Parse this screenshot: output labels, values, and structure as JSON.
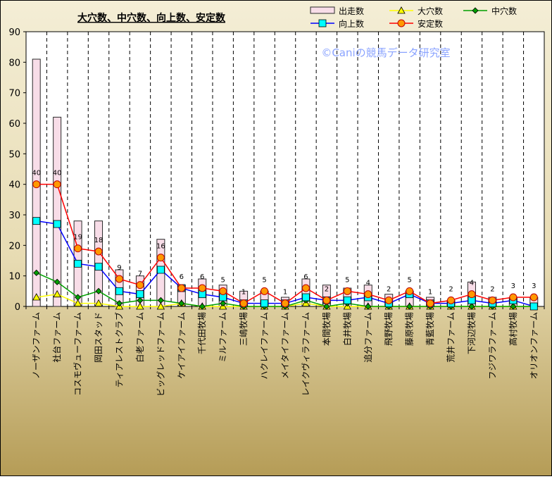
{
  "chart_data": {
    "type": "bar",
    "title": "大穴数、中穴数、向上数、安定数",
    "watermark": "©Caniの競馬データ研究室",
    "categories": [
      "ノーザンファーム",
      "社台ファーム",
      "コスモヴューファーム",
      "岡田スタッド",
      "ティアレストクラブ",
      "白老ファーム",
      "ビッグレッドファーム",
      "ケイアイファーム",
      "千代田牧場",
      "ミルファーム",
      "三嶋牧場",
      "ハクレイファーム",
      "メイタイファーム",
      "レイクヴィラファーム",
      "本間牧場",
      "白井牧場",
      "追分ファーム",
      "飛野牧場",
      "藤原牧場",
      "青藍牧場",
      "荒井ファーム",
      "下河辺牧場",
      "フジワラファーム",
      "高村牧場",
      "オリオンファーム"
    ],
    "ylim": [
      0,
      90
    ],
    "yticks": [
      0,
      10,
      20,
      30,
      40,
      50,
      60,
      70,
      80,
      90
    ],
    "grid": "horizontal-none, vertical-dashed",
    "legend_position": "top-right",
    "colors": {
      "bar_fill": "#f8dde8",
      "bar_stroke": "#2a2a2a",
      "daiana": "#ffff00",
      "chuana": "#00a000",
      "kojo_line": "#0000ff",
      "kojo_marker": "#00ffff",
      "antei_line": "#ff0000",
      "antei_marker": "#ff9900",
      "plot_bg": "#ffffff",
      "frame_top": "#f3ecd2",
      "frame_bottom": "#b9a05a"
    },
    "series": [
      {
        "name": "出走数",
        "kind": "bar",
        "values": [
          81,
          62,
          28,
          28,
          12,
          10,
          22,
          7,
          9,
          7,
          5,
          5,
          3,
          9,
          7,
          6,
          7,
          4,
          5,
          3,
          2,
          8,
          3,
          3,
          3
        ]
      },
      {
        "name": "大穴数",
        "kind": "line",
        "values": [
          3,
          4,
          1,
          1,
          0,
          0,
          0,
          1,
          0,
          0,
          0,
          0,
          0,
          1,
          0,
          0,
          0,
          0,
          0,
          0,
          0,
          0,
          0,
          0,
          0
        ]
      },
      {
        "name": "中穴数",
        "kind": "line",
        "values": [
          11,
          8,
          3,
          5,
          1,
          2,
          2,
          1,
          0,
          1,
          0,
          0,
          0,
          2,
          0,
          1,
          0,
          0,
          0,
          0,
          0,
          0,
          0,
          0,
          0
        ]
      },
      {
        "name": "向上数",
        "kind": "line",
        "values": [
          28,
          27,
          14,
          13,
          5,
          4,
          12,
          6,
          4,
          3,
          1,
          1,
          1,
          3,
          2,
          2,
          3,
          1,
          4,
          1,
          1,
          2,
          1,
          2,
          0
        ]
      },
      {
        "name": "安定数",
        "kind": "line",
        "values": [
          40,
          40,
          19,
          18,
          9,
          7,
          16,
          6,
          6,
          5,
          1,
          5,
          1,
          6,
          2,
          5,
          4,
          2,
          5,
          1,
          2,
          4,
          2,
          3,
          3
        ]
      }
    ],
    "data_labels": {
      "series": "安定数",
      "values": [
        40,
        40,
        19,
        18,
        9,
        7,
        16,
        6,
        6,
        5,
        1,
        5,
        1,
        6,
        2,
        5,
        4,
        2,
        5,
        1,
        2,
        4,
        2,
        3,
        3
      ]
    }
  }
}
